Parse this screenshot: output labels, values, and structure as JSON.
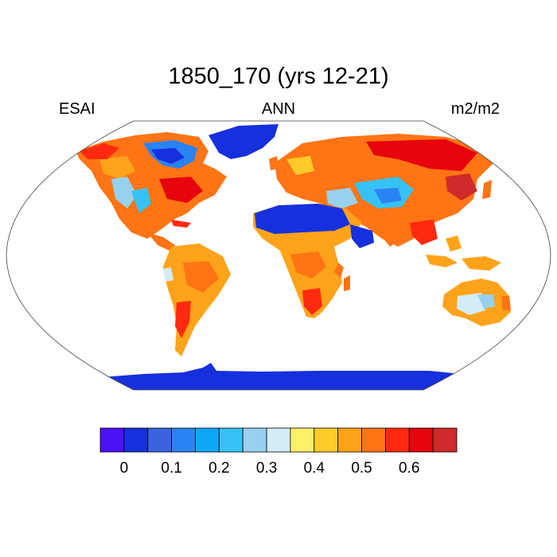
{
  "title": "1850_170 (yrs 12-21)",
  "left_label": "ESAI",
  "center_label": "ANN",
  "right_label": "m2/m2",
  "map": {
    "projection": "Robinson",
    "ocean_color": "#ffffff",
    "outline_color": "#444444"
  },
  "colorbar": {
    "colors": [
      "#4a12f5",
      "#1630dd",
      "#3b63dd",
      "#2a83f3",
      "#10a8f5",
      "#37c2f5",
      "#97d1ee",
      "#d3ecf8",
      "#fff06a",
      "#ffcb2a",
      "#ffa31a",
      "#ff7414",
      "#ff2a10",
      "#e6040e",
      "#d02a2a"
    ],
    "tick_labels": [
      "0",
      "0.1",
      "0.2",
      "0.3",
      "0.4",
      "0.5",
      "0.6"
    ]
  }
}
